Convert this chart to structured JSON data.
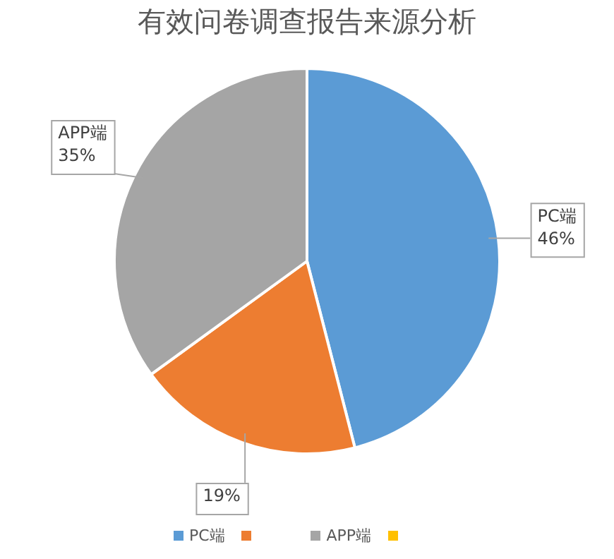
{
  "chart_data": {
    "type": "pie",
    "title": "有效问卷调查报告来源分析",
    "categories": [
      "PC端",
      null,
      "APP端",
      null
    ],
    "values": [
      46,
      19,
      35,
      0
    ],
    "colors": [
      "#5b9bd5",
      "#ed7d31",
      "#a5a5a5",
      "#ffc000"
    ],
    "value_labels": [
      "46%",
      "19%",
      "35%",
      null
    ],
    "legend": "bottom"
  }
}
